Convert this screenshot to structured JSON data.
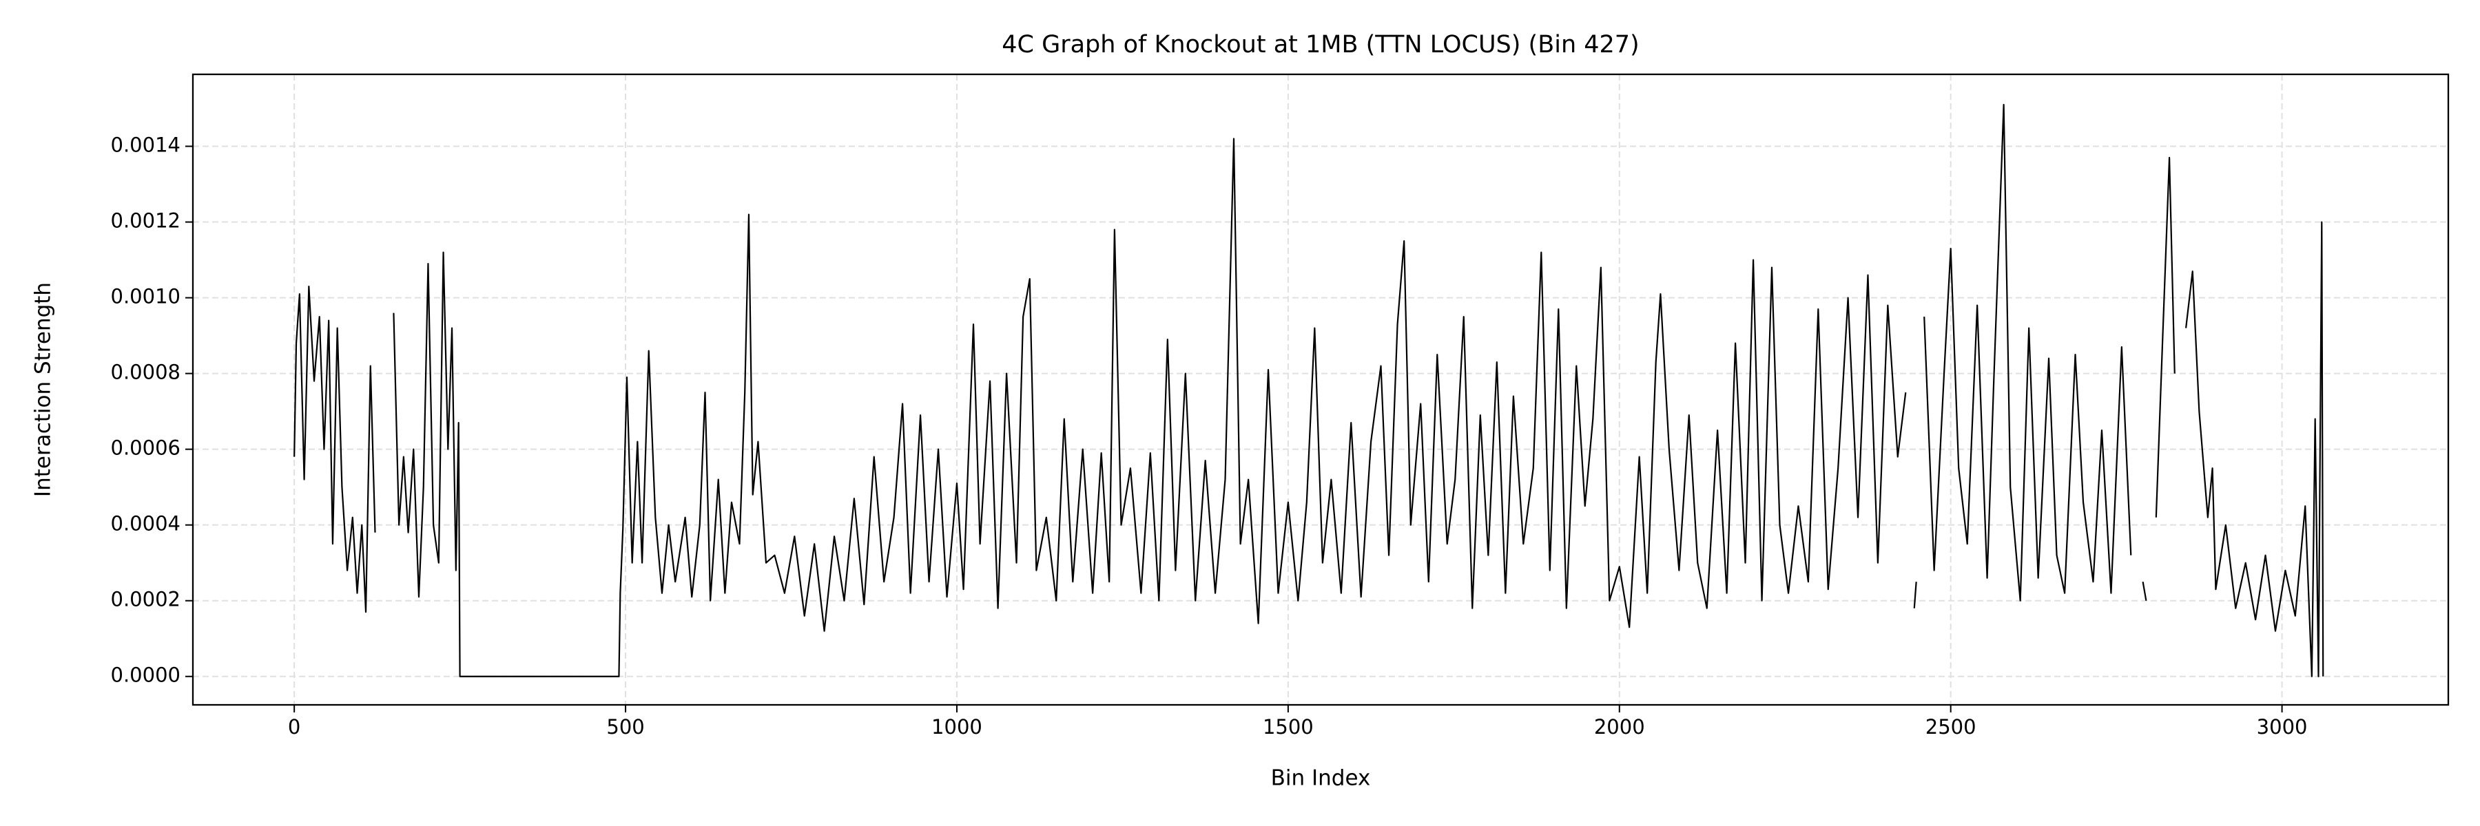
{
  "chart_data": {
    "type": "line",
    "title": "4C Graph of Knockout at 1MB (TTN LOCUS) (Bin 427)",
    "xlabel": "Bin Index",
    "ylabel": "Interaction Strength",
    "x": [
      0,
      3,
      8,
      15,
      22,
      30,
      38,
      45,
      52,
      58,
      65,
      72,
      80,
      88,
      95,
      102,
      108,
      115,
      122,
      130,
      150,
      158,
      165,
      172,
      180,
      188,
      195,
      202,
      210,
      218,
      225,
      232,
      238,
      244,
      248,
      250,
      490,
      492,
      496,
      502,
      510,
      518,
      525,
      535,
      545,
      555,
      565,
      575,
      590,
      600,
      612,
      620,
      628,
      640,
      650,
      660,
      672,
      680,
      686,
      692,
      700,
      712,
      725,
      740,
      755,
      770,
      785,
      800,
      815,
      830,
      845,
      860,
      875,
      890,
      905,
      918,
      930,
      945,
      958,
      972,
      985,
      1000,
      1010,
      1025,
      1035,
      1050,
      1062,
      1075,
      1090,
      1100,
      1110,
      1120,
      1135,
      1150,
      1162,
      1175,
      1190,
      1205,
      1218,
      1230,
      1238,
      1248,
      1262,
      1278,
      1292,
      1305,
      1318,
      1330,
      1345,
      1360,
      1375,
      1390,
      1405,
      1418,
      1428,
      1440,
      1455,
      1470,
      1485,
      1500,
      1515,
      1528,
      1540,
      1552,
      1565,
      1580,
      1595,
      1610,
      1625,
      1640,
      1652,
      1665,
      1675,
      1685,
      1700,
      1712,
      1725,
      1740,
      1752,
      1765,
      1778,
      1790,
      1802,
      1815,
      1828,
      1840,
      1855,
      1870,
      1882,
      1895,
      1908,
      1920,
      1935,
      1948,
      1960,
      1972,
      1985,
      2000,
      2015,
      2030,
      2042,
      2055,
      2062,
      2075,
      2090,
      2105,
      2118,
      2132,
      2148,
      2162,
      2175,
      2190,
      2202,
      2215,
      2230,
      2242,
      2255,
      2270,
      2285,
      2300,
      2315,
      2330,
      2345,
      2360,
      2375,
      2390,
      2405,
      2420,
      2432,
      2440,
      2445,
      2448,
      2452,
      2460,
      2475,
      2490,
      2500,
      2512,
      2525,
      2540,
      2555,
      2565,
      2580,
      2590,
      2605,
      2618,
      2632,
      2648,
      2660,
      2672,
      2688,
      2700,
      2715,
      2728,
      2742,
      2758,
      2772,
      2782,
      2790,
      2795,
      2800,
      2810,
      2820,
      2830,
      2838,
      2845,
      2855,
      2865,
      2875,
      2888,
      2895,
      2900,
      2915,
      2930,
      2945,
      2960,
      2975,
      2990,
      3005,
      3020,
      3035,
      3045,
      3050,
      3055,
      3060,
      3062
    ],
    "series": [
      {
        "color": "#000000",
        "values": [
          0.00058,
          0.00088,
          0.00101,
          0.00052,
          0.00103,
          0.00078,
          0.00095,
          0.0006,
          0.00094,
          0.00035,
          0.00092,
          0.0005,
          0.00028,
          0.00042,
          0.00022,
          0.0004,
          0.00017,
          0.00082,
          0.00038,
          null,
          0.00096,
          0.0004,
          0.00058,
          0.00038,
          0.0006,
          0.00021,
          0.0005,
          0.00109,
          0.0004,
          0.0003,
          0.00112,
          0.0006,
          0.00092,
          0.00028,
          0.00067,
          0,
          0,
          0.00022,
          0.00039,
          0.00079,
          0.0003,
          0.00062,
          0.0003,
          0.00086,
          0.00042,
          0.00022,
          0.0004,
          0.00025,
          0.00042,
          0.00021,
          0.0004,
          0.00075,
          0.0002,
          0.00052,
          0.00022,
          0.00046,
          0.00035,
          0.00075,
          0.00122,
          0.00048,
          0.00062,
          0.0003,
          0.00032,
          0.00022,
          0.00037,
          0.00016,
          0.00035,
          0.00012,
          0.00037,
          0.0002,
          0.00047,
          0.00019,
          0.00058,
          0.00025,
          0.00042,
          0.00072,
          0.00022,
          0.00069,
          0.00025,
          0.0006,
          0.00021,
          0.00051,
          0.00023,
          0.00093,
          0.00035,
          0.00078,
          0.00018,
          0.0008,
          0.0003,
          0.00095,
          0.00105,
          0.00028,
          0.00042,
          0.0002,
          0.00068,
          0.00025,
          0.0006,
          0.00022,
          0.00059,
          0.00025,
          0.00118,
          0.0004,
          0.00055,
          0.00022,
          0.00059,
          0.0002,
          0.00089,
          0.00028,
          0.0008,
          0.0002,
          0.00057,
          0.00022,
          0.00052,
          0.00142,
          0.00035,
          0.00052,
          0.00014,
          0.00081,
          0.00022,
          0.00046,
          0.0002,
          0.00046,
          0.00092,
          0.0003,
          0.00052,
          0.00022,
          0.00067,
          0.00021,
          0.00062,
          0.00082,
          0.00032,
          0.00093,
          0.00115,
          0.0004,
          0.00072,
          0.00025,
          0.00085,
          0.00035,
          0.00052,
          0.00095,
          0.00018,
          0.00069,
          0.00032,
          0.00083,
          0.00022,
          0.00074,
          0.00035,
          0.00055,
          0.00112,
          0.00028,
          0.00097,
          0.00018,
          0.00082,
          0.00045,
          0.00068,
          0.00108,
          0.0002,
          0.00029,
          0.00013,
          0.00058,
          0.00022,
          0.00083,
          0.00101,
          0.0006,
          0.00028,
          0.00069,
          0.0003,
          0.00018,
          0.00065,
          0.00022,
          0.00088,
          0.0003,
          0.0011,
          0.0002,
          0.00108,
          0.0004,
          0.00022,
          0.00045,
          0.00025,
          0.00097,
          0.00023,
          0.00055,
          0.001,
          0.00042,
          0.00106,
          0.0003,
          0.00098,
          0.00058,
          0.00075,
          null,
          0.00018,
          0.00025,
          null,
          0.00095,
          0.00028,
          0.0008,
          0.00113,
          0.00055,
          0.00035,
          0.00098,
          0.00026,
          0.00078,
          0.00151,
          0.0005,
          0.0002,
          0.00092,
          0.00026,
          0.00084,
          0.00032,
          0.00022,
          0.00085,
          0.00046,
          0.00025,
          0.00065,
          0.00022,
          0.00087,
          0.00032,
          null,
          0.00025,
          0.0002,
          null,
          0.00042,
          0.0009,
          0.00137,
          0.0008,
          null,
          0.00092,
          0.00107,
          0.0007,
          0.00042,
          0.00055,
          0.00023,
          0.0004,
          0.00018,
          0.0003,
          0.00015,
          0.00032,
          0.00012,
          0.00028,
          0.00016,
          0.00045,
          0,
          0.00068,
          0,
          0.0012,
          0
        ]
      }
    ],
    "xlim": [
      -153,
      3251
    ],
    "ylim": [
      -7.5e-05,
      0.00159
    ],
    "xticks": [
      0,
      500,
      1000,
      1500,
      2000,
      2500,
      3000
    ],
    "yticks": [
      {
        "value": 0,
        "label": "0.0000"
      },
      {
        "value": 0.0002,
        "label": "0.0002"
      },
      {
        "value": 0.0004,
        "label": "0.0004"
      },
      {
        "value": 0.0006,
        "label": "0.0006"
      },
      {
        "value": 0.0008,
        "label": "0.0008"
      },
      {
        "value": 0.001,
        "label": "0.0010"
      },
      {
        "value": 0.0012,
        "label": "0.0012"
      },
      {
        "value": 0.0014,
        "label": "0.0014"
      }
    ],
    "grid": true
  }
}
